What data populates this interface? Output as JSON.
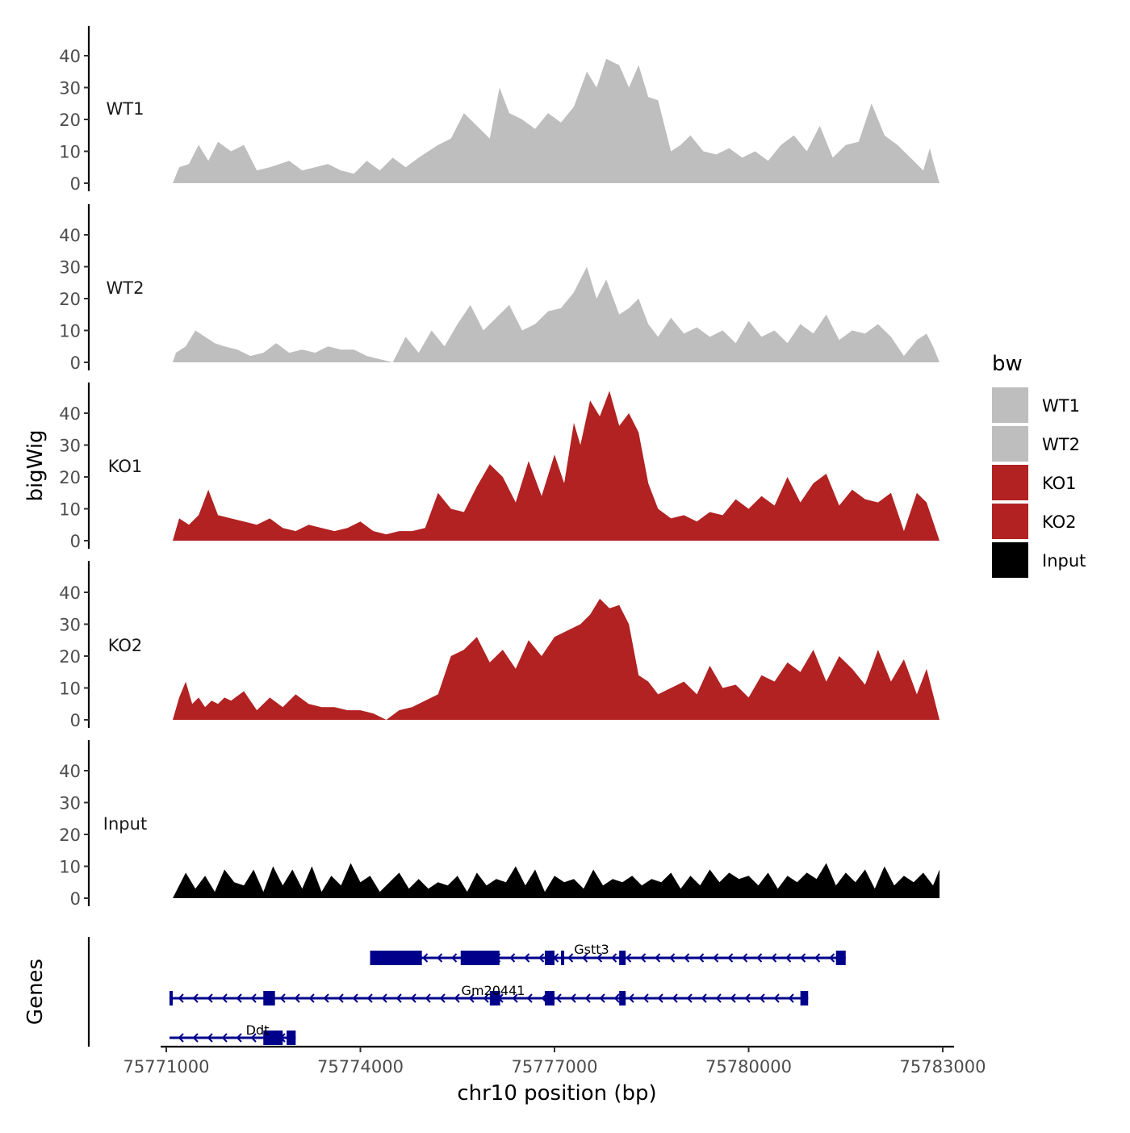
{
  "chart_data": {
    "type": "area",
    "title": "",
    "ylabel": "bigWig",
    "xlabel": "chr10 position (bp)",
    "genes_label": "Genes",
    "xlim": [
      75770900,
      75783000
    ],
    "xticks": [
      75771000,
      75774000,
      75777000,
      75780000,
      75783000
    ],
    "xtick_labels": [
      "75771000",
      "75774000",
      "75777000",
      "75780000",
      "75783000"
    ],
    "ylim": [
      0,
      50
    ],
    "yticks": [
      0,
      10,
      20,
      30,
      40
    ],
    "ytick_labels": [
      "0",
      "10",
      "20",
      "30",
      "40"
    ],
    "legend": {
      "title": "bw",
      "position": "right",
      "entries": [
        {
          "label": "WT1",
          "color": "#bebebe"
        },
        {
          "label": "WT2",
          "color": "#bebebe"
        },
        {
          "label": "KO1",
          "color": "#b22222"
        },
        {
          "label": "KO2",
          "color": "#b22222"
        },
        {
          "label": "Input",
          "color": "#000000"
        }
      ]
    },
    "series": [
      {
        "name": "WT1",
        "color": "#bebebe",
        "x": [
          75771100,
          75771200,
          75771350,
          75771500,
          75771650,
          75771800,
          75772000,
          75772200,
          75772400,
          75772600,
          75772900,
          75773100,
          75773300,
          75773500,
          75773700,
          75773900,
          75774100,
          75774300,
          75774500,
          75774700,
          75774900,
          75775200,
          75775400,
          75775600,
          75775800,
          75776000,
          75776150,
          75776300,
          75776500,
          75776700,
          75776900,
          75777100,
          75777300,
          75777500,
          75777650,
          75777800,
          75778000,
          75778150,
          75778300,
          75778450,
          75778600,
          75778800,
          75778950,
          75779100,
          75779300,
          75779500,
          75779700,
          75779900,
          75780100,
          75780300,
          75780500,
          75780700,
          75780900,
          75781100,
          75781300,
          75781500,
          75781700,
          75781900,
          75782100,
          75782300,
          75782500,
          75782700,
          75782800,
          75782850,
          75782950
        ],
        "values": [
          0,
          5,
          6,
          12,
          7,
          13,
          10,
          12,
          4,
          5,
          7,
          4,
          5,
          6,
          4,
          3,
          7,
          4,
          8,
          5,
          8,
          12,
          14,
          22,
          18,
          14,
          30,
          22,
          20,
          17,
          22,
          19,
          24,
          35,
          30,
          39,
          37,
          30,
          37,
          27,
          26,
          10,
          12,
          15,
          10,
          9,
          11,
          8,
          10,
          7,
          12,
          15,
          10,
          18,
          8,
          12,
          13,
          25,
          15,
          12,
          8,
          4,
          11,
          7,
          0
        ]
      },
      {
        "name": "WT2",
        "color": "#bebebe",
        "x": [
          75771100,
          75771150,
          75771300,
          75771450,
          75771600,
          75771750,
          75771900,
          75772100,
          75772300,
          75772500,
          75772700,
          75772900,
          75773100,
          75773300,
          75773500,
          75773700,
          75773900,
          75774100,
          75774300,
          75774500,
          75774700,
          75774900,
          75775100,
          75775300,
          75775500,
          75775700,
          75775900,
          75776100,
          75776300,
          75776500,
          75776700,
          75776900,
          75777100,
          75777300,
          75777500,
          75777650,
          75777800,
          75778000,
          75778150,
          75778300,
          75778450,
          75778600,
          75778800,
          75779000,
          75779200,
          75779400,
          75779600,
          75779800,
          75780000,
          75780200,
          75780400,
          75780600,
          75780800,
          75781000,
          75781200,
          75781400,
          75781600,
          75781800,
          75782000,
          75782200,
          75782400,
          75782600,
          75782750,
          75782850,
          75782950
        ],
        "values": [
          0,
          3,
          5,
          10,
          8,
          6,
          5,
          4,
          2,
          3,
          6,
          3,
          4,
          3,
          5,
          4,
          4,
          2,
          1,
          0,
          8,
          3,
          10,
          5,
          12,
          18,
          10,
          14,
          18,
          10,
          12,
          16,
          17,
          22,
          30,
          20,
          26,
          15,
          17,
          20,
          12,
          8,
          14,
          9,
          11,
          8,
          10,
          6,
          13,
          8,
          10,
          6,
          12,
          9,
          15,
          7,
          10,
          9,
          12,
          8,
          2,
          7,
          9,
          5,
          0
        ]
      },
      {
        "name": "KO1",
        "color": "#b22222",
        "x": [
          75771100,
          75771200,
          75771350,
          75771500,
          75771650,
          75771800,
          75772000,
          75772200,
          75772400,
          75772600,
          75772800,
          75773000,
          75773200,
          75773400,
          75773600,
          75773800,
          75774000,
          75774200,
          75774400,
          75774600,
          75774800,
          75775000,
          75775200,
          75775400,
          75775600,
          75775800,
          75776000,
          75776200,
          75776400,
          75776600,
          75776800,
          75777000,
          75777150,
          75777300,
          75777400,
          75777550,
          75777700,
          75777850,
          75778000,
          75778150,
          75778300,
          75778450,
          75778600,
          75778800,
          75779000,
          75779200,
          75779400,
          75779600,
          75779800,
          75780000,
          75780200,
          75780400,
          75780600,
          75780800,
          75781000,
          75781200,
          75781400,
          75781600,
          75781800,
          75782000,
          75782200,
          75782400,
          75782600,
          75782750,
          75782950
        ],
        "values": [
          0,
          7,
          5,
          8,
          16,
          8,
          7,
          6,
          5,
          7,
          4,
          3,
          5,
          4,
          3,
          4,
          6,
          3,
          2,
          3,
          3,
          4,
          15,
          10,
          9,
          17,
          24,
          20,
          12,
          25,
          14,
          27,
          18,
          37,
          30,
          44,
          39,
          47,
          36,
          40,
          34,
          18,
          10,
          7,
          8,
          6,
          9,
          8,
          13,
          10,
          14,
          11,
          20,
          12,
          18,
          21,
          11,
          16,
          13,
          12,
          15,
          3,
          15,
          12,
          0
        ]
      },
      {
        "name": "KO2",
        "color": "#b22222",
        "x": [
          75771100,
          75771200,
          75771300,
          75771400,
          75771500,
          75771600,
          75771700,
          75771800,
          75771900,
          75772000,
          75772200,
          75772400,
          75772600,
          75772800,
          75773000,
          75773200,
          75773400,
          75773600,
          75773800,
          75774000,
          75774200,
          75774400,
          75774600,
          75774800,
          75775000,
          75775200,
          75775400,
          75775600,
          75775800,
          75776000,
          75776200,
          75776400,
          75776600,
          75776800,
          75777000,
          75777200,
          75777400,
          75777550,
          75777700,
          75777850,
          75778000,
          75778150,
          75778300,
          75778450,
          75778600,
          75778800,
          75779000,
          75779200,
          75779400,
          75779600,
          75779800,
          75780000,
          75780200,
          75780400,
          75780600,
          75780800,
          75781000,
          75781200,
          75781400,
          75781600,
          75781800,
          75782000,
          75782200,
          75782400,
          75782600,
          75782750,
          75782950
        ],
        "values": [
          0,
          7,
          12,
          5,
          7,
          4,
          6,
          5,
          7,
          6,
          9,
          3,
          7,
          4,
          8,
          5,
          4,
          4,
          3,
          3,
          2,
          0,
          3,
          4,
          6,
          8,
          20,
          22,
          26,
          18,
          22,
          16,
          25,
          20,
          26,
          28,
          30,
          33,
          38,
          35,
          36,
          30,
          14,
          12,
          8,
          10,
          12,
          8,
          17,
          10,
          11,
          7,
          14,
          12,
          18,
          15,
          22,
          12,
          20,
          16,
          11,
          22,
          12,
          19,
          8,
          16,
          0
        ]
      },
      {
        "name": "Input",
        "color": "#000000",
        "x": [
          75771100,
          75771300,
          75771450,
          75771600,
          75771750,
          75771900,
          75772050,
          75772200,
          75772350,
          75772500,
          75772650,
          75772800,
          75772950,
          75773100,
          75773250,
          75773400,
          75773550,
          75773700,
          75773850,
          75774000,
          75774150,
          75774300,
          75774450,
          75774600,
          75774750,
          75774900,
          75775050,
          75775200,
          75775350,
          75775500,
          75775650,
          75775800,
          75775950,
          75776100,
          75776250,
          75776400,
          75776550,
          75776700,
          75776850,
          75777000,
          75777150,
          75777300,
          75777450,
          75777600,
          75777750,
          75777900,
          75778050,
          75778200,
          75778350,
          75778500,
          75778650,
          75778800,
          75778950,
          75779100,
          75779250,
          75779400,
          75779550,
          75779700,
          75779850,
          75780000,
          75780150,
          75780300,
          75780450,
          75780600,
          75780750,
          75780900,
          75781050,
          75781200,
          75781350,
          75781500,
          75781650,
          75781800,
          75781950,
          75782100,
          75782250,
          75782400,
          75782550,
          75782700,
          75782850,
          75782950
        ],
        "values": [
          0,
          8,
          3,
          7,
          2,
          9,
          5,
          4,
          9,
          2,
          10,
          4,
          9,
          3,
          10,
          2,
          7,
          4,
          11,
          5,
          7,
          2,
          5,
          8,
          3,
          6,
          3,
          5,
          4,
          7,
          2,
          8,
          4,
          6,
          5,
          10,
          4,
          9,
          2,
          7,
          5,
          6,
          3,
          9,
          4,
          6,
          5,
          7,
          4,
          6,
          5,
          8,
          3,
          7,
          4,
          9,
          5,
          8,
          6,
          7,
          4,
          8,
          3,
          7,
          5,
          8,
          6,
          11,
          4,
          8,
          5,
          9,
          3,
          10,
          4,
          7,
          5,
          8,
          4,
          9
        ]
      }
    ],
    "genes": [
      {
        "name": "Gstt3",
        "strand": "-",
        "start": 75774150,
        "end": 75781500,
        "exons": [
          [
            75774150,
            75774950
          ],
          [
            75775550,
            75776150
          ],
          [
            75776850,
            75777000
          ],
          [
            75777100,
            75777150
          ],
          [
            75778000,
            75778100
          ],
          [
            75781350,
            75781500
          ]
        ]
      },
      {
        "name": "Gm20441",
        "strand": "-",
        "start": 75771050,
        "end": 75780920,
        "exons": [
          [
            75771050,
            75771100
          ],
          [
            75772500,
            75772680
          ],
          [
            75776000,
            75776160
          ],
          [
            75776850,
            75777000
          ],
          [
            75778000,
            75778100
          ],
          [
            75780800,
            75780920
          ]
        ]
      },
      {
        "name": "Ddt",
        "strand": "-",
        "start": 75771050,
        "end": 75773000,
        "exons": [
          [
            75772500,
            75772800
          ],
          [
            75772860,
            75773000
          ]
        ]
      }
    ]
  }
}
